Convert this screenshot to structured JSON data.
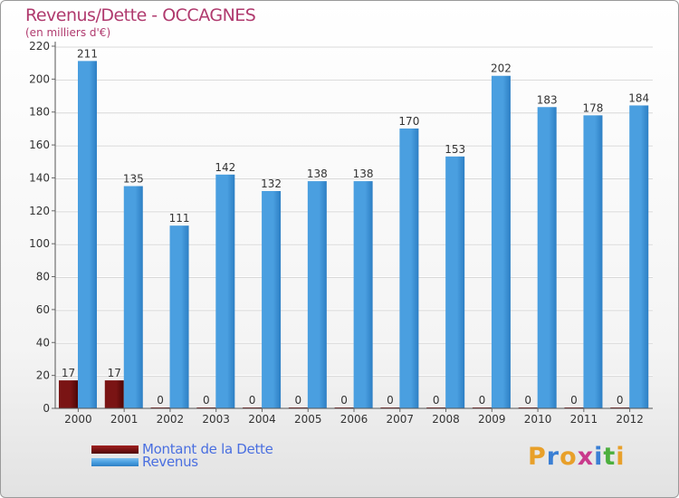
{
  "chart_data": {
    "type": "bar",
    "title": "Revenus/Dette - OCCAGNES",
    "subtitle": "(en milliers d'€)",
    "categories": [
      "2000",
      "2001",
      "2002",
      "2003",
      "2004",
      "2005",
      "2006",
      "2007",
      "2008",
      "2009",
      "2010",
      "2011",
      "2012"
    ],
    "series": [
      {
        "name": "Montant de la Dette",
        "color": "#7a1414",
        "values": [
          17,
          17,
          0,
          0,
          0,
          0,
          0,
          0,
          0,
          0,
          0,
          0,
          0
        ]
      },
      {
        "name": "Revenus",
        "color": "#4a9fe0",
        "values": [
          211,
          135,
          111,
          142,
          132,
          138,
          138,
          170,
          153,
          202,
          183,
          178,
          184
        ]
      }
    ],
    "ylim": [
      0,
      220
    ],
    "yticks": [
      0,
      20,
      40,
      60,
      80,
      100,
      120,
      140,
      160,
      180,
      200,
      220
    ],
    "grid": true,
    "legend": "bottom-left"
  },
  "logo": {
    "letters": [
      "P",
      "r",
      "o",
      "x",
      "i",
      "t",
      "i"
    ],
    "colors": [
      "#e8a02a",
      "#3a7fd4",
      "#e8a02a",
      "#c93a8c",
      "#3a7fd4",
      "#4caf3e",
      "#e8a02a"
    ]
  }
}
